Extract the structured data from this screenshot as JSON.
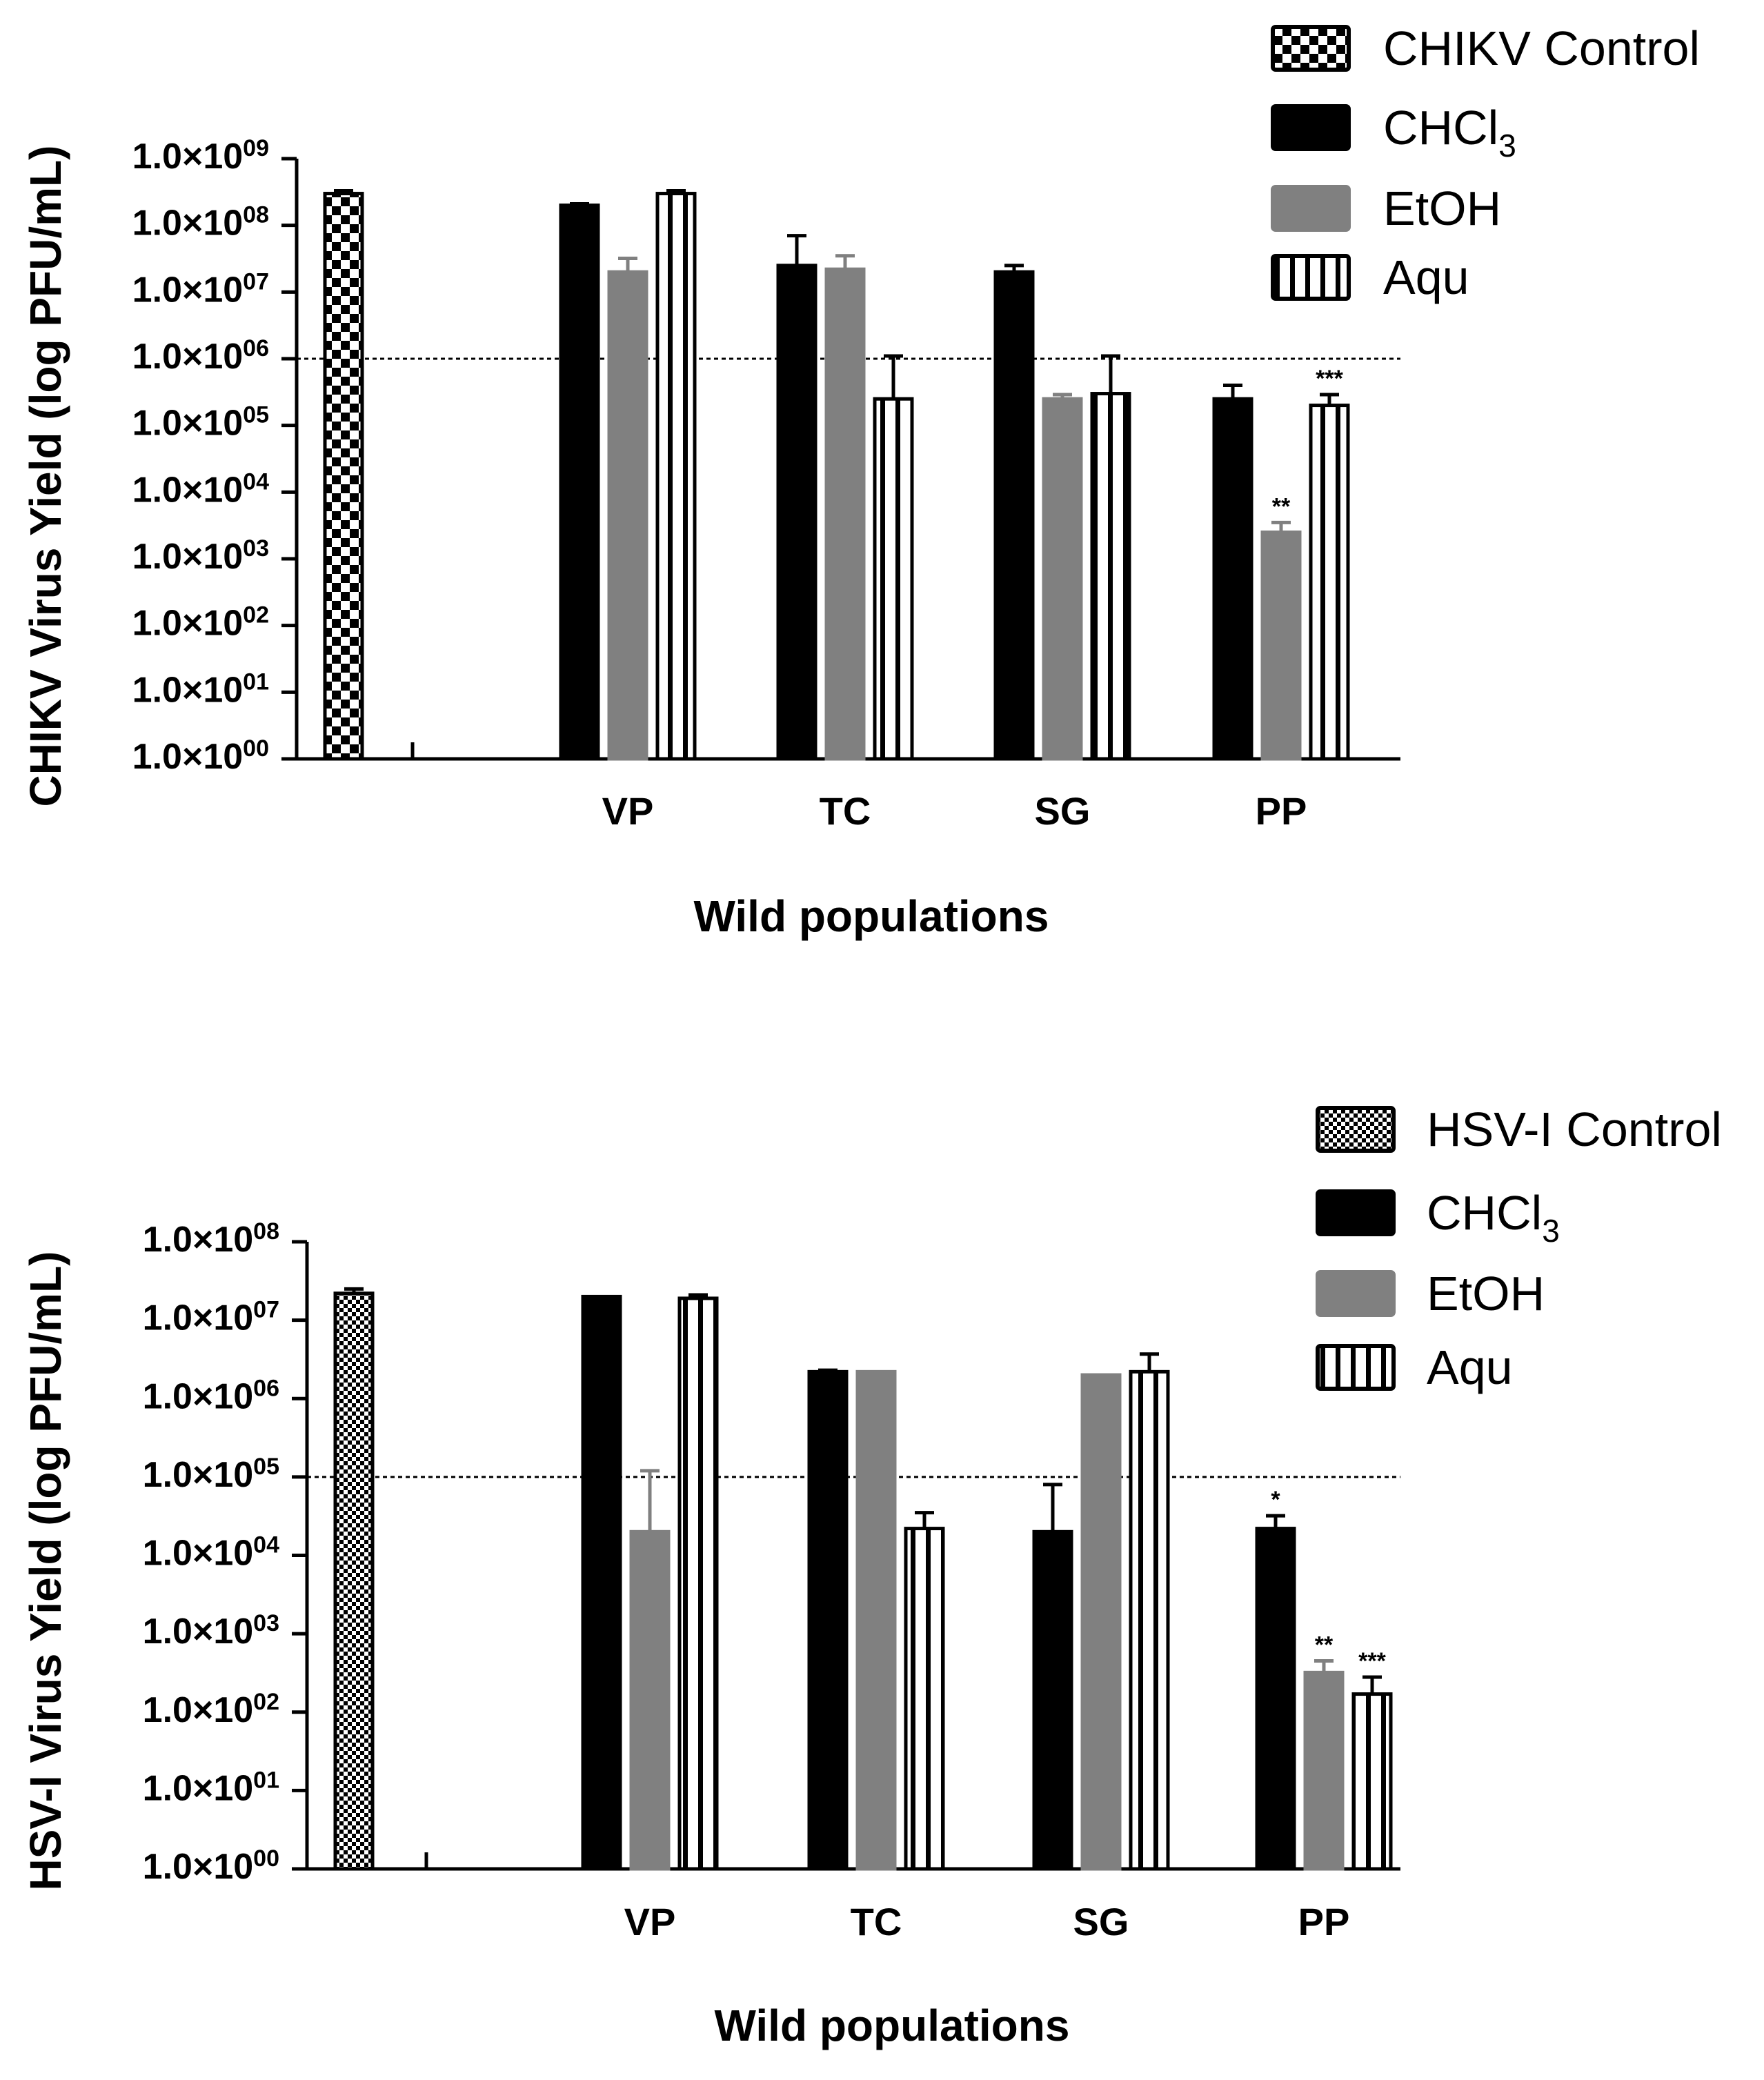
{
  "figure": {
    "charts": [
      {
        "id": "chikv",
        "ylabel": "CHIKV Virus Yield (log PFU/mL)",
        "xlabel": "Wild populations"
      },
      {
        "id": "hsv",
        "ylabel": "HSV-I Virus Yield (log PFU/mL)",
        "xlabel": "Wild populations"
      }
    ]
  },
  "chart_data": [
    {
      "type": "bar",
      "scale": "log10",
      "ylabel": "CHIKV Virus Yield (log PFU/mL)",
      "xlabel": "Wild populations",
      "ylim_exponent": [
        0,
        9
      ],
      "y_tick_mantissa": "1.0×10",
      "y_tick_exponents": [
        "00",
        "01",
        "02",
        "03",
        "04",
        "05",
        "06",
        "07",
        "08",
        "09"
      ],
      "threshold": 1000000,
      "categories": [
        "VP",
        "TC",
        "SG",
        "PP"
      ],
      "control": {
        "name": "CHIKV Control",
        "value": 300000000,
        "err_high": 330000000
      },
      "series": [
        {
          "name": "CHCl3",
          "legend_main": "CHCl",
          "legend_sub": "3",
          "values": [
            200000000,
            25000000,
            20000000,
            250000
          ],
          "err_high": [
            210000000,
            70000000,
            25000000,
            400000
          ],
          "stars": [
            "",
            "",
            "",
            ""
          ]
        },
        {
          "name": "EtOH",
          "legend_main": "EtOH",
          "legend_sub": "",
          "values": [
            20000000,
            22000000,
            250000,
            2500
          ],
          "err_high": [
            32000000,
            35000000,
            290000,
            3500
          ],
          "stars": [
            "",
            "",
            "",
            "**"
          ]
        },
        {
          "name": "Aqu",
          "legend_main": "Aqu",
          "legend_sub": "",
          "values": [
            300000000,
            250000,
            300000,
            200000
          ],
          "err_high": [
            330000000,
            1100000,
            1100000,
            290000
          ],
          "stars": [
            "",
            "",
            "",
            "***"
          ]
        }
      ],
      "legend": [
        "CHIKV Control",
        "CHCl3",
        "EtOH",
        "Aqu"
      ]
    },
    {
      "type": "bar",
      "scale": "log10",
      "ylabel": "HSV-I Virus Yield (log PFU/mL)",
      "xlabel": "Wild populations",
      "ylim_exponent": [
        0,
        8
      ],
      "y_tick_mantissa": "1.0×10",
      "y_tick_exponents": [
        "00",
        "01",
        "02",
        "03",
        "04",
        "05",
        "06",
        "07",
        "08"
      ],
      "threshold": 100000,
      "categories": [
        "VP",
        "TC",
        "SG",
        "PP"
      ],
      "control": {
        "name": "HSV-I Control",
        "value": 22000000,
        "err_high": 25000000
      },
      "series": [
        {
          "name": "CHCl3",
          "legend_main": "CHCl",
          "legend_sub": "3",
          "values": [
            20000000,
            2200000,
            20000,
            22000
          ],
          "err_high": [
            20000000,
            2300000,
            80000,
            32000
          ],
          "stars": [
            "",
            "",
            "",
            "*"
          ]
        },
        {
          "name": "EtOH",
          "legend_main": "EtOH",
          "legend_sub": "",
          "values": [
            20000,
            2200000,
            2000000,
            320
          ],
          "err_high": [
            120000,
            2200000,
            2000000,
            450
          ],
          "stars": [
            "",
            "",
            "",
            "**"
          ]
        },
        {
          "name": "Aqu",
          "legend_main": "Aqu",
          "legend_sub": "",
          "values": [
            19000000,
            22000,
            2200000,
            170
          ],
          "err_high": [
            21000000,
            35000,
            3700000,
            280
          ],
          "stars": [
            "",
            "",
            "",
            "***"
          ]
        }
      ],
      "legend": [
        "HSV-I Control",
        "CHCl3",
        "EtOH",
        "Aqu"
      ]
    }
  ]
}
